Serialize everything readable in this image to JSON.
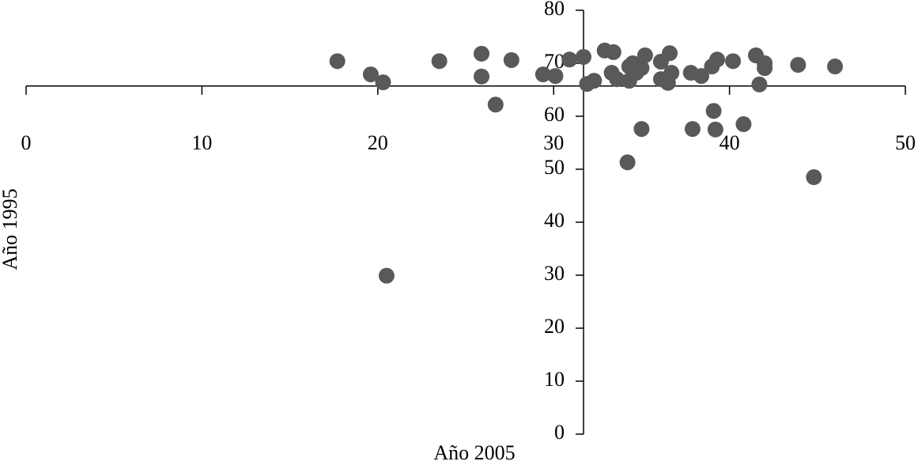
{
  "chart_data": {
    "type": "scatter",
    "x_label": "Año 2005",
    "y_label": "Año 1995",
    "xlim": [
      0,
      50
    ],
    "xticks": [
      0,
      10,
      20,
      30,
      40,
      50
    ],
    "ylim": [
      0,
      80
    ],
    "yticks": [
      0,
      10,
      20,
      30,
      40,
      50,
      60,
      70,
      80
    ],
    "x_axis_crosses_y": 65.7,
    "y_axis_crosses_x": 31.7,
    "color": "#595959",
    "grid": false,
    "x": [
      17.7,
      19.6,
      20.3,
      23.5,
      25.9,
      25.9,
      27.6,
      26.7,
      29.4,
      30.1,
      30.9,
      31.7,
      31.9,
      32.3,
      32.9,
      33.4,
      33.3,
      33.6,
      34.3,
      34.5,
      34.3,
      34.7,
      35.0,
      35.2,
      36.1,
      36.1,
      36.6,
      36.5,
      36.7,
      37.8,
      38.4,
      39.0,
      39.3,
      40.2,
      41.5,
      42.0,
      42.0,
      41.7,
      43.9,
      46.0,
      39.1,
      35.0,
      37.9,
      39.2,
      40.8,
      34.2,
      44.8,
      20.5
    ],
    "values": [
      70.4,
      67.9,
      66.4,
      70.4,
      71.8,
      67.5,
      70.6,
      62.2,
      67.9,
      67.6,
      70.7,
      71.2,
      66.1,
      66.7,
      72.4,
      72.1,
      68.2,
      67.0,
      69.4,
      70.0,
      66.7,
      68.2,
      69.1,
      71.5,
      70.3,
      67.0,
      71.9,
      66.3,
      68.2,
      68.2,
      67.6,
      69.4,
      70.7,
      70.4,
      71.5,
      70.0,
      69.1,
      66.0,
      69.7,
      69.4,
      61.0,
      57.6,
      57.6,
      57.5,
      58.5,
      51.3,
      48.5,
      29.9
    ]
  }
}
